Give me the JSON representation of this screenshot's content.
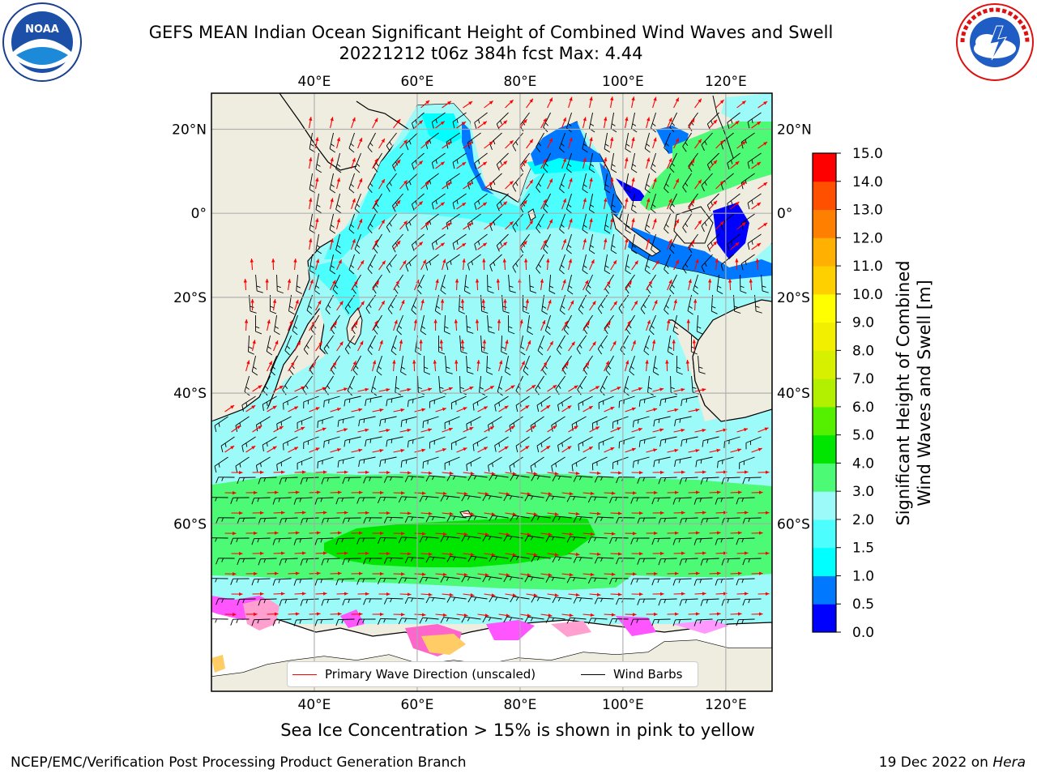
{
  "header": {
    "title_line1": "GEFS MEAN Indian Ocean Significant Height of Combined Wind Waves and Swell",
    "title_line2": "20221212 t06z 384h fcst   Max: 4.44"
  },
  "logos": {
    "left": {
      "name": "noaa-logo",
      "text": "NOAA",
      "ring_text": "NATIONAL OCEANIC AND ATMOSPHERIC ADMINISTRATION · U.S. DEPARTMENT OF COMMERCE"
    },
    "right": {
      "name": "nws-logo",
      "ring_text": "NATIONAL WEATHER SERVICE"
    }
  },
  "map": {
    "lon_range": [
      20,
      129
    ],
    "lat_range": [
      -75,
      28
    ],
    "top_lon_ticks": [
      "40°E",
      "60°E",
      "80°E",
      "100°E",
      "120°E"
    ],
    "bottom_lon_ticks": [
      "40°E",
      "60°E",
      "80°E",
      "100°E",
      "120°E"
    ],
    "lon_tick_values": [
      40,
      60,
      80,
      100,
      120
    ],
    "lat_ticks": [
      "20°N",
      "0°",
      "20°S",
      "40°S",
      "60°S"
    ],
    "lat_tick_values": [
      20,
      0,
      -20,
      -40,
      -60
    ],
    "land_color": "#efede0",
    "ocean_color": "#9cfbf9",
    "max_value": "4.44"
  },
  "legend": {
    "primary_wave_direction": "Primary Wave Direction (unscaled)",
    "wind_barbs": "Wind Barbs",
    "wave_color": "#ff0000",
    "barb_color": "#000000"
  },
  "colorbar": {
    "title_line1": "Significant Height of Combined",
    "title_line2": "Wind Waves and Swell [m]",
    "tick_labels": [
      "0.0",
      "0.5",
      "1.0",
      "1.5",
      "2.0",
      "3.0",
      "4.0",
      "5.0",
      "6.0",
      "7.0",
      "8.0",
      "9.0",
      "10.0",
      "11.0",
      "12.0",
      "13.0",
      "14.0",
      "15.0"
    ],
    "colors": [
      "#0000ff",
      "#0078ff",
      "#00ffff",
      "#4cfefd",
      "#9cfbf9",
      "#4cfa76",
      "#00e600",
      "#55f000",
      "#b3f000",
      "#d7f000",
      "#f2f000",
      "#ffff00",
      "#ffd000",
      "#ffb000",
      "#ff8000",
      "#ff5000",
      "#ff0000"
    ]
  },
  "footer": {
    "subtitle": "Sea Ice Concentration > 15% is shown in pink to yellow",
    "left": "NCEP/EMC/Verification Post Processing Product Generation Branch",
    "right_date": "19 Dec 2022 on ",
    "right_host": "Hera"
  }
}
